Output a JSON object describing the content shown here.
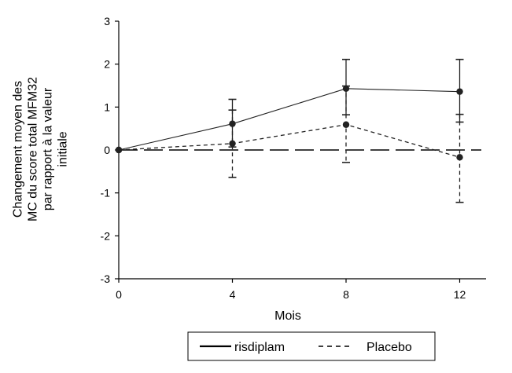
{
  "chart_data": {
    "type": "line",
    "xlabel": "Mois",
    "ylabel_lines": [
      "Changement moyen des",
      "MC du score total MFM32",
      "par rapport à la valeur",
      "initiale"
    ],
    "xlim": [
      0,
      13
    ],
    "ylim": [
      -3,
      3
    ],
    "x_ticks": [
      "0",
      "4",
      "8",
      "12"
    ],
    "y_ticks": [
      "3",
      "2",
      "1",
      "0",
      "-1",
      "-2",
      "-3"
    ],
    "reference_line_y": 0,
    "legend_position": "bottom-center",
    "series": [
      {
        "name": "risdiplam",
        "style": "solid",
        "color": "#222222",
        "x": [
          0,
          4,
          8,
          12
        ],
        "values": [
          0,
          0.61,
          1.43,
          1.36
        ],
        "error_low": [
          null,
          0.07,
          0.82,
          0.65
        ],
        "error_high": [
          null,
          1.18,
          2.11,
          2.11
        ]
      },
      {
        "name": "Placebo",
        "style": "dashed",
        "color": "#222222",
        "x": [
          0,
          4,
          8,
          12
        ],
        "values": [
          0,
          0.15,
          0.59,
          -0.17
        ],
        "error_low": [
          null,
          -0.64,
          -0.29,
          -1.22
        ],
        "error_high": [
          null,
          0.93,
          1.49,
          0.83
        ]
      }
    ]
  }
}
